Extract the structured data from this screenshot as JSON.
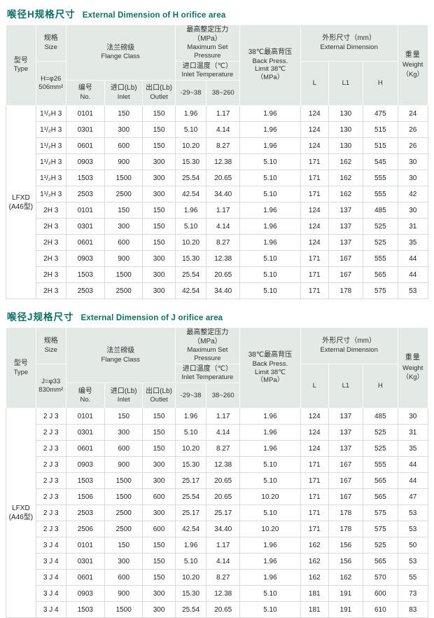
{
  "accent_color": "#0e6e65",
  "header_bg": "#e3eae6",
  "tables": [
    {
      "title_zh": "喉径H规格尺寸",
      "title_en": "External Dimension of H orifice area",
      "header": {
        "type_zh": "型号",
        "type_en": "Type",
        "size_zh": "规格",
        "size_en": "Size",
        "size_spec_line1": "H=φ26",
        "size_spec_line2": "506mm²",
        "flange_zh": "法兰磅级",
        "flange_en": "Flange Class",
        "no_zh": "编号",
        "no_en": "No.",
        "inlet_zh": "进口(Lb)",
        "inlet_en": "Inlet",
        "outlet_zh": "出口(Lb)",
        "outlet_en": "Outlet",
        "pressure_zh": "最高整定压力（MPa）",
        "pressure_en": "Maximum Set Pressure",
        "temp_zh": "进口温度（℃）",
        "temp_en": "Inlet Temperature",
        "temp_low": "-29~38",
        "temp_high": "38~260",
        "back_line1": "38℃最高背压",
        "back_line2": "Back Press.",
        "back_line3": "Limit 38℃",
        "back_line4": "（MPa）",
        "dim_zh": "外形尺寸（mm）",
        "dim_en": "External Dimension",
        "col_l": "L",
        "col_l1": "L1",
        "col_h": "H",
        "weight_zh": "重量",
        "weight_en": "Weight",
        "weight_unit": "（Kg）"
      },
      "type_line1": "LFXD",
      "type_line2": "(A46型)",
      "rows": [
        [
          "1¹/₂H 3",
          "0101",
          "150",
          "150",
          "1.96",
          "1.17",
          "1.96",
          "124",
          "130",
          "475",
          "24"
        ],
        [
          "1¹/₂H 3",
          "0301",
          "300",
          "150",
          "5.10",
          "4.14",
          "1.96",
          "124",
          "130",
          "515",
          "26"
        ],
        [
          "1¹/₂H 3",
          "0601",
          "600",
          "150",
          "10.20",
          "8.27",
          "1.96",
          "124",
          "130",
          "515",
          "26"
        ],
        [
          "1¹/₂H 3",
          "0903",
          "900",
          "300",
          "15.30",
          "12.38",
          "5.10",
          "171",
          "162",
          "545",
          "30"
        ],
        [
          "1¹/₂H 3",
          "1503",
          "1500",
          "300",
          "25.54",
          "20.65",
          "5.10",
          "171",
          "162",
          "555",
          "30"
        ],
        [
          "1¹/₂H 3",
          "2503",
          "2500",
          "300",
          "42.54",
          "34.40",
          "5.10",
          "171",
          "162",
          "555",
          "42"
        ],
        [
          "2H 3",
          "0101",
          "150",
          "150",
          "1.96",
          "1.17",
          "1.96",
          "124",
          "137",
          "485",
          "30"
        ],
        [
          "2H 3",
          "0301",
          "300",
          "150",
          "5.10",
          "4.14",
          "1.96",
          "124",
          "137",
          "525",
          "31"
        ],
        [
          "2H 3",
          "0601",
          "600",
          "150",
          "10.20",
          "8.27",
          "1.96",
          "124",
          "137",
          "525",
          "35"
        ],
        [
          "2H 3",
          "0903",
          "900",
          "300",
          "15.30",
          "12.38",
          "5.10",
          "171",
          "167",
          "555",
          "44"
        ],
        [
          "2H 3",
          "1503",
          "1500",
          "300",
          "25.54",
          "20.65",
          "5.10",
          "171",
          "167",
          "565",
          "44"
        ],
        [
          "2H 3",
          "2503",
          "2500",
          "300",
          "42.54",
          "34.40",
          "5.10",
          "171",
          "178",
          "575",
          "53"
        ]
      ]
    },
    {
      "title_zh": "喉径J规格尺寸",
      "title_en": "External Dimension of J orifice area",
      "header": {
        "type_zh": "型号",
        "type_en": "Type",
        "size_zh": "规格",
        "size_en": "Size",
        "size_spec_line1": "J=φ33",
        "size_spec_line2": "830mm²",
        "flange_zh": "法兰磅级",
        "flange_en": "Flange Class",
        "no_zh": "编号",
        "no_en": "No.",
        "inlet_zh": "进口(Lb)",
        "inlet_en": "Inlet",
        "outlet_zh": "出口(Lb)",
        "outlet_en": "Outlet",
        "pressure_zh": "最高整定压力（MPa）",
        "pressure_en": "Maximum Set Pressure",
        "temp_zh": "进口温度（℃）",
        "temp_en": "Inlet Temperature",
        "temp_low": "-29~38",
        "temp_high": "38~260",
        "back_line1": "38℃最高背压",
        "back_line2": "Back Press.",
        "back_line3": "Limit 38℃",
        "back_line4": "（MPa）",
        "dim_zh": "外形尺寸（mm）",
        "dim_en": "External Dimension",
        "col_l": "L",
        "col_l1": "L1",
        "col_h": "H",
        "weight_zh": "重量",
        "weight_en": "Weight",
        "weight_unit": "（Kg）"
      },
      "type_line1": "LFXD",
      "type_line2": "(A46型)",
      "rows": [
        [
          "2 J 3",
          "0101",
          "150",
          "150",
          "1.96",
          "1.17",
          "1.96",
          "124",
          "137",
          "485",
          "30"
        ],
        [
          "2 J 3",
          "0301",
          "300",
          "150",
          "5.10",
          "4.14",
          "1.96",
          "124",
          "137",
          "525",
          "31"
        ],
        [
          "2 J 3",
          "0601",
          "600",
          "150",
          "10.20",
          "8.27",
          "1.96",
          "124",
          "137",
          "525",
          "35"
        ],
        [
          "2 J 3",
          "0903",
          "900",
          "300",
          "15.30",
          "12.38",
          "5.10",
          "171",
          "167",
          "555",
          "44"
        ],
        [
          "2 J 3",
          "1503",
          "1500",
          "300",
          "25.17",
          "20.65",
          "5.10",
          "171",
          "167",
          "565",
          "44"
        ],
        [
          "2 J 3",
          "1506",
          "1500",
          "600",
          "25.54",
          "20.65",
          "10.20",
          "171",
          "167",
          "565",
          "47"
        ],
        [
          "2 J 3",
          "2503",
          "2500",
          "300",
          "25.17",
          "25.17",
          "5.10",
          "171",
          "178",
          "575",
          "53"
        ],
        [
          "2 J 3",
          "2506",
          "2500",
          "600",
          "42.54",
          "34.40",
          "10.20",
          "171",
          "178",
          "575",
          "53"
        ],
        [
          "3 J 4",
          "0101",
          "150",
          "150",
          "1.96",
          "1.17",
          "1.96",
          "162",
          "156",
          "525",
          "50"
        ],
        [
          "3 J 4",
          "0301",
          "300",
          "150",
          "5.10",
          "4.14",
          "1.96",
          "162",
          "156",
          "565",
          "53"
        ],
        [
          "3 J 4",
          "0601",
          "600",
          "150",
          "10.20",
          "8.27",
          "1.96",
          "162",
          "162",
          "570",
          "55"
        ],
        [
          "3 J 4",
          "0903",
          "900",
          "300",
          "15.30",
          "12.38",
          "5.10",
          "181",
          "191",
          "600",
          "73"
        ],
        [
          "3 J 4",
          "1503",
          "1500",
          "300",
          "25.54",
          "20.65",
          "5.10",
          "181",
          "191",
          "610",
          "83"
        ]
      ]
    }
  ]
}
